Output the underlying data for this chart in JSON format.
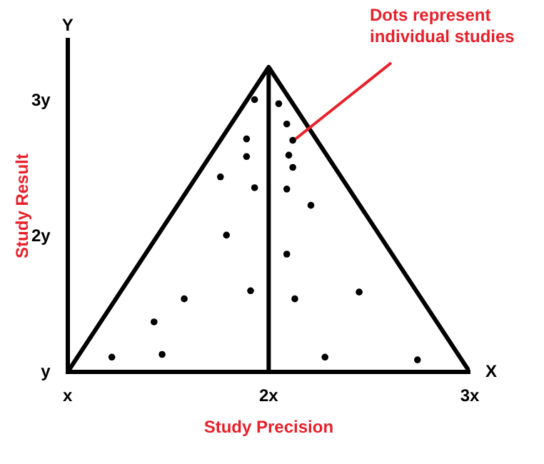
{
  "chart_data": {
    "type": "scatter",
    "xlabel": "Study Precision",
    "ylabel": "Study Result",
    "xlim": [
      1,
      3
    ],
    "ylim": [
      1,
      3.45
    ],
    "xticks": [
      {
        "value": 1,
        "label": "x"
      },
      {
        "value": 2,
        "label": "2x"
      },
      {
        "value": 3,
        "label": "3x"
      }
    ],
    "yticks": [
      {
        "value": 1,
        "label": "y"
      },
      {
        "value": 2,
        "label": "2y"
      },
      {
        "value": 3,
        "label": "3y"
      }
    ],
    "grid": false,
    "legend": false,
    "series": [
      {
        "type": "line",
        "color": "#000000",
        "marker": "none",
        "x": [
          1,
          2,
          3,
          2,
          2
        ],
        "values": [
          1,
          3.25,
          1,
          1,
          3.25
        ]
      },
      {
        "color": "#000000",
        "marker": "circle",
        "x": [
          1.93,
          2.05,
          2.09,
          1.89,
          2.12,
          1.89,
          2.1,
          2.12,
          1.76,
          1.93,
          2.09,
          2.21,
          1.79,
          2.09,
          1.91,
          1.58,
          2.13,
          2.45,
          1.43,
          1.22,
          1.47,
          2.28,
          2.74
        ],
        "values": [
          3.01,
          2.98,
          2.83,
          2.72,
          2.71,
          2.59,
          2.6,
          2.51,
          2.44,
          2.36,
          2.35,
          2.23,
          2.01,
          1.87,
          1.6,
          1.54,
          1.54,
          1.59,
          1.37,
          1.11,
          1.13,
          1.11,
          1.09
        ]
      }
    ],
    "annotations": [
      "Y",
      "X",
      {
        "text": "Dots represent individual studies",
        "x": 2.12,
        "y": 2.71
      }
    ]
  }
}
